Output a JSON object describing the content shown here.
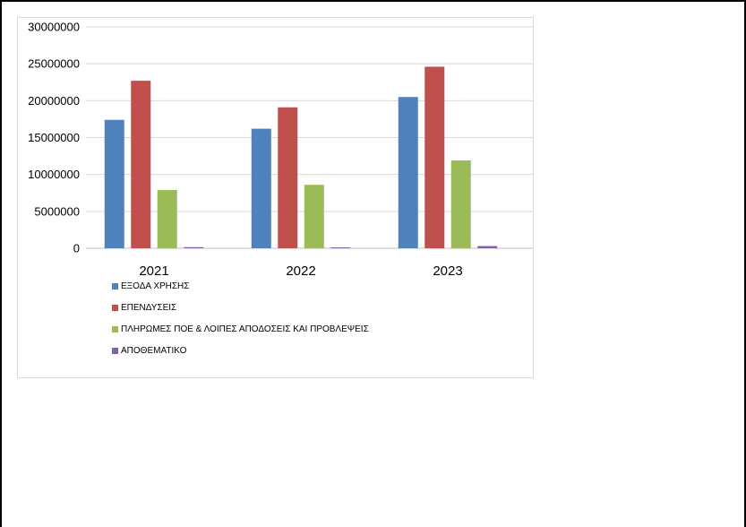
{
  "chart_data": {
    "type": "bar",
    "title": "",
    "xlabel": "",
    "ylabel": "",
    "categories": [
      "2021",
      "2022",
      "2023"
    ],
    "ylim": [
      0,
      30000000
    ],
    "yticks": [
      "0",
      "5000000",
      "10000000",
      "15000000",
      "20000000",
      "25000000",
      "30000000"
    ],
    "grid": true,
    "legend_position": "bottom-left",
    "series": [
      {
        "name": "ΕΞΟΔΑ ΧΡΗΣΗΣ",
        "color": "#4f81bd",
        "values": [
          17400000,
          16200000,
          20500000
        ]
      },
      {
        "name": "ΕΠΕΝΔΥΣΕΙΣ",
        "color": "#c0504d",
        "values": [
          22700000,
          19100000,
          24600000
        ]
      },
      {
        "name": "ΠΛΗΡΩΜΕΣ ΠΟΕ & ΛΟΙΠΕΣ ΑΠΟΔΟΣΕΙΣ ΚΑΙ ΠΡΟΒΛΕΨΕΙΣ",
        "color": "#9bbb59",
        "values": [
          7900000,
          8600000,
          11900000
        ]
      },
      {
        "name": "ΑΠΟΘΕΜΑΤΙΚΟ",
        "color": "#8064a2",
        "values": [
          150000,
          120000,
          300000
        ]
      }
    ]
  }
}
